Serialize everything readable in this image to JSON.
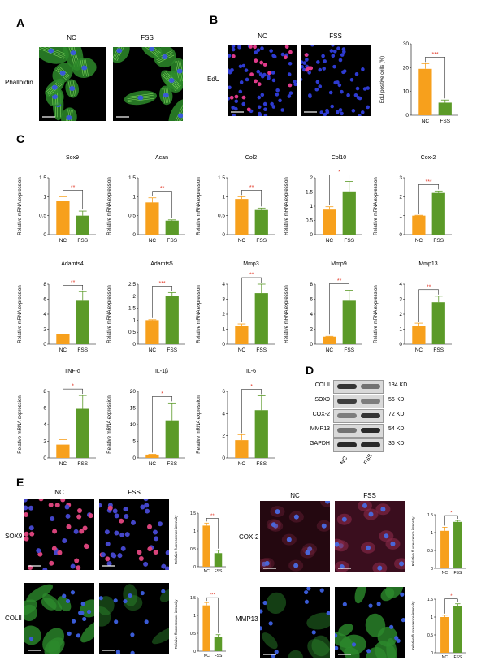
{
  "panels": {
    "A": {
      "letter": "A",
      "columns": [
        "NC",
        "FSS"
      ],
      "row_label": "Phalloidin"
    },
    "B": {
      "letter": "B",
      "columns": [
        "NC",
        "FSS"
      ],
      "row_label": "EdU"
    },
    "C": {
      "letter": "C"
    },
    "D": {
      "letter": "D",
      "bands": [
        {
          "name": "COLII",
          "kd": "134 KD",
          "nc": 0.85,
          "fss": 0.55
        },
        {
          "name": "SOX9",
          "kd": "56 KD",
          "nc": 0.8,
          "fss": 0.5
        },
        {
          "name": "COX-2",
          "kd": "72 KD",
          "nc": 0.5,
          "fss": 0.85
        },
        {
          "name": "MMP13",
          "kd": "54 KD",
          "nc": 0.55,
          "fss": 0.9
        },
        {
          "name": "GAPDH",
          "kd": "36 KD",
          "nc": 0.9,
          "fss": 0.9
        }
      ],
      "lanes": [
        "NC",
        "FSS"
      ]
    },
    "E": {
      "letter": "E",
      "left_columns": [
        "NC",
        "FSS"
      ],
      "right_columns": [
        "NC",
        "FSS"
      ],
      "rows_left": [
        "SOX9",
        "COLII"
      ],
      "rows_right": [
        "COX-2",
        "MMP13"
      ]
    }
  },
  "colors": {
    "nc": "#f7a01c",
    "fss": "#5b9a28",
    "sig": "#e33a2a"
  },
  "chart_data": [
    {
      "type": "bar",
      "id": "edu",
      "categories": [
        "NC",
        "FSS"
      ],
      "values": [
        19.5,
        5.3
      ],
      "errors": [
        2.2,
        1.1
      ],
      "ylabel": "EdU positive cells (%)",
      "yticks": [
        0,
        10,
        20,
        30
      ],
      "ylim": [
        0,
        30
      ],
      "sig": "***"
    },
    {
      "type": "bar",
      "id": "sox9",
      "title": "Sox9",
      "categories": [
        "NC",
        "FSS"
      ],
      "values": [
        0.9,
        0.5
      ],
      "errors": [
        0.1,
        0.12
      ],
      "ylabel": "Relative mRNA expression",
      "yticks": [
        0.0,
        0.5,
        1.0,
        1.5
      ],
      "ylim": [
        0,
        1.5
      ],
      "sig": "**"
    },
    {
      "type": "bar",
      "id": "acan",
      "title": "Acan",
      "categories": [
        "NC",
        "FSS"
      ],
      "values": [
        0.85,
        0.37
      ],
      "errors": [
        0.12,
        0.02
      ],
      "ylabel": "Relative mRNA expression",
      "yticks": [
        0.0,
        0.5,
        1.0,
        1.5
      ],
      "ylim": [
        0,
        1.5
      ],
      "sig": "**"
    },
    {
      "type": "bar",
      "id": "col2",
      "title": "Col2",
      "categories": [
        "NC",
        "FSS"
      ],
      "values": [
        0.94,
        0.65
      ],
      "errors": [
        0.06,
        0.05
      ],
      "ylabel": "Relative mRNA expression",
      "yticks": [
        0.0,
        0.5,
        1.0,
        1.5
      ],
      "ylim": [
        0,
        1.5
      ],
      "sig": "**"
    },
    {
      "type": "bar",
      "id": "col10",
      "title": "Col10",
      "categories": [
        "NC",
        "FSS"
      ],
      "values": [
        0.88,
        1.52
      ],
      "errors": [
        0.1,
        0.35
      ],
      "ylabel": "Relative mRNA expression",
      "yticks": [
        0.0,
        0.5,
        1.0,
        1.5,
        2.0
      ],
      "ylim": [
        0,
        2.0
      ],
      "sig": "*"
    },
    {
      "type": "bar",
      "id": "cox2",
      "title": "Cox-2",
      "categories": [
        "NC",
        "FSS"
      ],
      "values": [
        1.0,
        2.2
      ],
      "errors": [
        0.02,
        0.1
      ],
      "ylabel": "Relative mRNA expression",
      "yticks": [
        0,
        1,
        2,
        3
      ],
      "ylim": [
        0,
        3
      ],
      "sig": "***"
    },
    {
      "type": "bar",
      "id": "adamts4",
      "title": "Adamts4",
      "categories": [
        "NC",
        "FSS"
      ],
      "values": [
        1.3,
        5.8
      ],
      "errors": [
        0.6,
        1.2
      ],
      "ylabel": "Relative mRNA expression",
      "yticks": [
        0,
        2,
        4,
        6,
        8
      ],
      "ylim": [
        0,
        8
      ],
      "sig": "**"
    },
    {
      "type": "bar",
      "id": "adamts5",
      "title": "Adamts5",
      "categories": [
        "NC",
        "FSS"
      ],
      "values": [
        1.0,
        2.0
      ],
      "errors": [
        0.02,
        0.15
      ],
      "ylabel": "Relative mRNA expression",
      "yticks": [
        0.0,
        0.5,
        1.0,
        1.5,
        2.0,
        2.5
      ],
      "ylim": [
        0,
        2.5
      ],
      "sig": "***"
    },
    {
      "type": "bar",
      "id": "mmp3",
      "title": "Mmp3",
      "categories": [
        "NC",
        "FSS"
      ],
      "values": [
        1.2,
        3.4
      ],
      "errors": [
        0.15,
        0.6
      ],
      "ylabel": "Relative mRNA expression",
      "yticks": [
        0,
        1,
        2,
        3,
        4
      ],
      "ylim": [
        0,
        4
      ],
      "sig": "**"
    },
    {
      "type": "bar",
      "id": "mmp9",
      "title": "Mmp9",
      "categories": [
        "NC",
        "FSS"
      ],
      "values": [
        1.0,
        5.8
      ],
      "errors": [
        0.05,
        1.4
      ],
      "ylabel": "Relative mRNA expression",
      "yticks": [
        0,
        2,
        4,
        6,
        8
      ],
      "ylim": [
        0,
        8
      ],
      "sig": "**"
    },
    {
      "type": "bar",
      "id": "mmp13",
      "title": "Mmp13",
      "categories": [
        "NC",
        "FSS"
      ],
      "values": [
        1.2,
        2.8
      ],
      "errors": [
        0.2,
        0.4
      ],
      "ylabel": "Relative mRNA expression",
      "yticks": [
        0,
        1,
        2,
        3,
        4
      ],
      "ylim": [
        0,
        4
      ],
      "sig": "**"
    },
    {
      "type": "bar",
      "id": "tnfa",
      "title": "TNF-α",
      "categories": [
        "NC",
        "FSS"
      ],
      "values": [
        1.6,
        5.9
      ],
      "errors": [
        0.6,
        1.6
      ],
      "ylabel": "Relative mRNA expression",
      "yticks": [
        0,
        2,
        4,
        6,
        8
      ],
      "ylim": [
        0,
        8
      ],
      "sig": "*"
    },
    {
      "type": "bar",
      "id": "il1b",
      "title": "IL-1β",
      "categories": [
        "NC",
        "FSS"
      ],
      "values": [
        1.0,
        11.3
      ],
      "errors": [
        0.1,
        5.2
      ],
      "ylabel": "Relative mRNA expression",
      "yticks": [
        0,
        5,
        10,
        15,
        20
      ],
      "ylim": [
        0,
        20
      ],
      "sig": "*"
    },
    {
      "type": "bar",
      "id": "il6",
      "title": "IL-6",
      "categories": [
        "NC",
        "FSS"
      ],
      "values": [
        1.6,
        4.3
      ],
      "errors": [
        0.5,
        1.3
      ],
      "ylabel": "Relative mRNA expression",
      "yticks": [
        0,
        2,
        4,
        6
      ],
      "ylim": [
        0,
        6
      ],
      "sig": "*"
    },
    {
      "type": "bar",
      "id": "e_sox9",
      "categories": [
        "NC",
        "FSS"
      ],
      "values": [
        1.15,
        0.38
      ],
      "errors": [
        0.07,
        0.08
      ],
      "ylabel": "Relative fluorescence intensity",
      "yticks": [
        0.0,
        0.5,
        1.0,
        1.5
      ],
      "ylim": [
        0,
        1.5
      ],
      "sig": "**"
    },
    {
      "type": "bar",
      "id": "e_colii",
      "categories": [
        "NC",
        "FSS"
      ],
      "values": [
        1.28,
        0.4
      ],
      "errors": [
        0.08,
        0.06
      ],
      "ylabel": "Relative fluorescence intensity",
      "yticks": [
        0.0,
        0.5,
        1.0,
        1.5
      ],
      "ylim": [
        0,
        1.5
      ],
      "sig": "***"
    },
    {
      "type": "bar",
      "id": "e_cox2",
      "categories": [
        "NC",
        "FSS"
      ],
      "values": [
        1.05,
        1.3
      ],
      "errors": [
        0.1,
        0.04
      ],
      "ylabel": "Relative fluorescence intensity",
      "yticks": [
        0.0,
        0.5,
        1.0,
        1.5
      ],
      "ylim": [
        0,
        1.5
      ],
      "sig": "*"
    },
    {
      "type": "bar",
      "id": "e_mmp13",
      "categories": [
        "NC",
        "FSS"
      ],
      "values": [
        1.0,
        1.3
      ],
      "errors": [
        0.05,
        0.07
      ],
      "ylabel": "Relative fluorescence intensity",
      "yticks": [
        0.0,
        0.5,
        1.0,
        1.5
      ],
      "ylim": [
        0,
        1.5
      ],
      "sig": "*"
    }
  ]
}
